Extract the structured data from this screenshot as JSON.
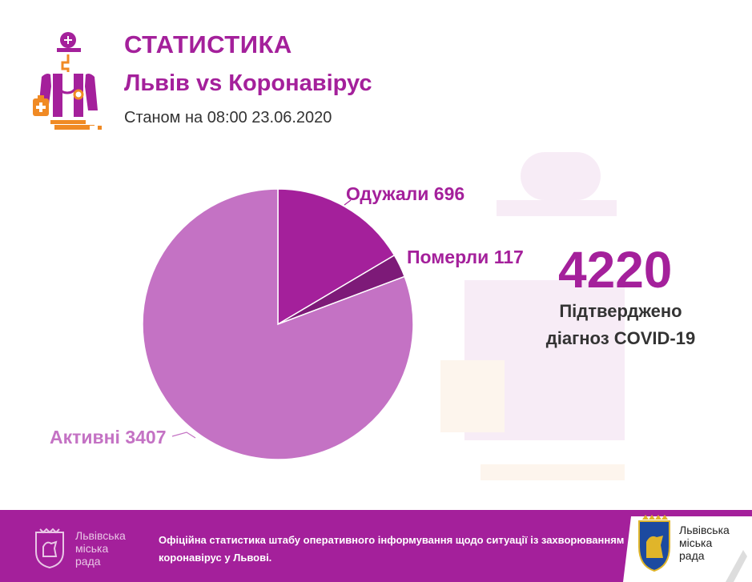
{
  "header": {
    "title": "СТАТИСТИКА",
    "subtitle": "Львів vs Коронавірус",
    "date_line": "Станом на 08:00 23.06.2020"
  },
  "summary": {
    "total": "4220",
    "label_line1": "Підтверджено",
    "label_line2": "діагноз COVID-19"
  },
  "chart_data": {
    "type": "pie",
    "slices": [
      {
        "label": "Одужали 696",
        "value": 696,
        "color": "#a4209b",
        "text_color": "#a4209b"
      },
      {
        "label": "Померли 117",
        "value": 117,
        "color": "#7d1a78",
        "text_color": "#a4209b"
      },
      {
        "label": "Активні 3407",
        "value": 3407,
        "color": "#c472c4",
        "text_color": "#c472c4"
      }
    ]
  },
  "footer": {
    "left_org_line1": "Львівська",
    "left_org_line2": "міська",
    "left_org_line3": "рада",
    "message_line1": "Офіційна статистика штабу оперативного інформування щодо ситуації із захворюванням",
    "message_line2": "коронавірус у Львові.",
    "right_org_line1": "Львівська",
    "right_org_line2": "міська",
    "right_org_line3": "рада"
  },
  "colors": {
    "accent": "#a4209b",
    "orange": "#f08a24"
  },
  "icons": {
    "header": "doctor-icon",
    "watermark": "doctor-watermark-icon",
    "footer_left": "city-coat-of-arms-icon",
    "footer_right": "lviv-lion-coat-of-arms-icon"
  }
}
